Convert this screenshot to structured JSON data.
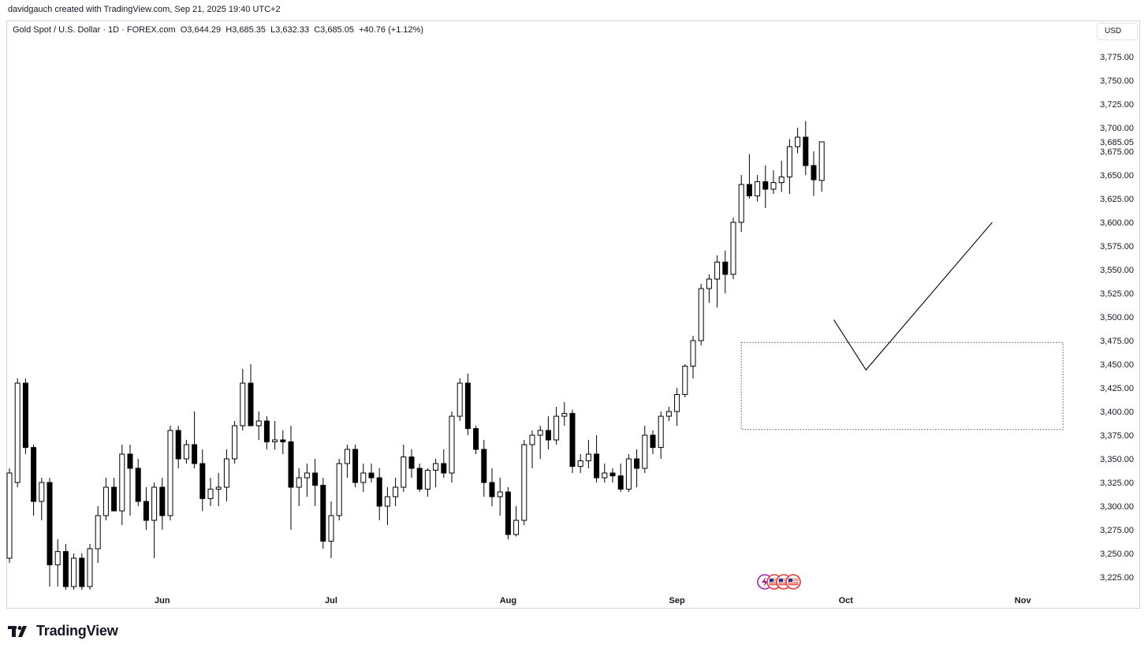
{
  "header": {
    "credit": "davidgauch created with TradingView.com, Sep 21, 2025 19:40 UTC+2"
  },
  "legend": {
    "symbol": "Gold Spot / U.S. Dollar · 1D · FOREX.com",
    "open": "O3,644.29",
    "high": "H3,685.35",
    "low": "L3,632.33",
    "close": "C3,685.05",
    "change": "+40.76 (+1.12%)"
  },
  "currency_button": "USD",
  "footer": {
    "brand": "TradingView",
    "logo_icon": "tradingview-logo-icon"
  },
  "event_icons": [
    "lightning-icon",
    "us-flag-icon",
    "us-flag-icon",
    "us-flag-icon"
  ],
  "colors": {
    "bull_fill": "#ffffff",
    "bear_fill": "#000000",
    "outline": "#000000",
    "axis_text": "#131722",
    "border": "#d1d4dc"
  },
  "chart_data": {
    "type": "candlestick",
    "symbol": "Gold Spot / U.S. Dollar",
    "timeframe": "1D",
    "currency": "USD",
    "y_range": [
      3210,
      3790
    ],
    "y_ticks": [
      "3,225.00",
      "3,250.00",
      "3,275.00",
      "3,300.00",
      "3,325.00",
      "3,350.00",
      "3,375.00",
      "3,400.00",
      "3,425.00",
      "3,450.00",
      "3,475.00",
      "3,500.00",
      "3,525.00",
      "3,550.00",
      "3,575.00",
      "3,600.00",
      "3,625.00",
      "3,650.00",
      "3,675.00",
      "3,700.00",
      "3,725.00",
      "3,750.00",
      "3,775.00"
    ],
    "last_price_label": "3,685.05",
    "x_labels": [
      {
        "label": "Jun",
        "bar": 19
      },
      {
        "label": "Jul",
        "bar": 40
      },
      {
        "label": "Aug",
        "bar": 62
      },
      {
        "label": "Sep",
        "bar": 83
      },
      {
        "label": "Oct",
        "bar": 104
      },
      {
        "label": "Nov",
        "bar": 126
      }
    ],
    "candles": [
      {
        "o": 3245,
        "h": 3340,
        "l": 3240,
        "c": 3335
      },
      {
        "o": 3325,
        "h": 3435,
        "l": 3320,
        "c": 3430
      },
      {
        "o": 3430,
        "h": 3435,
        "l": 3355,
        "c": 3362
      },
      {
        "o": 3362,
        "h": 3365,
        "l": 3290,
        "c": 3305
      },
      {
        "o": 3305,
        "h": 3330,
        "l": 3285,
        "c": 3325
      },
      {
        "o": 3325,
        "h": 3330,
        "l": 3215,
        "c": 3238
      },
      {
        "o": 3238,
        "h": 3265,
        "l": 3215,
        "c": 3252
      },
      {
        "o": 3252,
        "h": 3260,
        "l": 3210,
        "c": 3215
      },
      {
        "o": 3215,
        "h": 3250,
        "l": 3210,
        "c": 3245
      },
      {
        "o": 3245,
        "h": 3250,
        "l": 3210,
        "c": 3215
      },
      {
        "o": 3215,
        "h": 3260,
        "l": 3210,
        "c": 3255
      },
      {
        "o": 3255,
        "h": 3300,
        "l": 3240,
        "c": 3290
      },
      {
        "o": 3290,
        "h": 3330,
        "l": 3285,
        "c": 3320
      },
      {
        "o": 3320,
        "h": 3330,
        "l": 3295,
        "c": 3295
      },
      {
        "o": 3295,
        "h": 3365,
        "l": 3280,
        "c": 3355
      },
      {
        "o": 3355,
        "h": 3365,
        "l": 3290,
        "c": 3340
      },
      {
        "o": 3340,
        "h": 3350,
        "l": 3300,
        "c": 3305
      },
      {
        "o": 3305,
        "h": 3320,
        "l": 3275,
        "c": 3285
      },
      {
        "o": 3285,
        "h": 3325,
        "l": 3245,
        "c": 3320
      },
      {
        "o": 3320,
        "h": 3330,
        "l": 3275,
        "c": 3290
      },
      {
        "o": 3290,
        "h": 3385,
        "l": 3285,
        "c": 3380
      },
      {
        "o": 3380,
        "h": 3385,
        "l": 3340,
        "c": 3350
      },
      {
        "o": 3350,
        "h": 3370,
        "l": 3345,
        "c": 3365
      },
      {
        "o": 3365,
        "h": 3400,
        "l": 3340,
        "c": 3345
      },
      {
        "o": 3345,
        "h": 3360,
        "l": 3295,
        "c": 3308
      },
      {
        "o": 3308,
        "h": 3330,
        "l": 3300,
        "c": 3318
      },
      {
        "o": 3318,
        "h": 3335,
        "l": 3300,
        "c": 3320
      },
      {
        "o": 3320,
        "h": 3360,
        "l": 3305,
        "c": 3350
      },
      {
        "o": 3350,
        "h": 3390,
        "l": 3345,
        "c": 3385
      },
      {
        "o": 3385,
        "h": 3445,
        "l": 3380,
        "c": 3430
      },
      {
        "o": 3430,
        "h": 3450,
        "l": 3385,
        "c": 3385
      },
      {
        "o": 3385,
        "h": 3400,
        "l": 3370,
        "c": 3390
      },
      {
        "o": 3390,
        "h": 3395,
        "l": 3360,
        "c": 3368
      },
      {
        "o": 3368,
        "h": 3390,
        "l": 3360,
        "c": 3370
      },
      {
        "o": 3370,
        "h": 3380,
        "l": 3355,
        "c": 3368
      },
      {
        "o": 3368,
        "h": 3385,
        "l": 3275,
        "c": 3320
      },
      {
        "o": 3320,
        "h": 3340,
        "l": 3300,
        "c": 3330
      },
      {
        "o": 3330,
        "h": 3345,
        "l": 3310,
        "c": 3335
      },
      {
        "o": 3335,
        "h": 3350,
        "l": 3300,
        "c": 3322
      },
      {
        "o": 3322,
        "h": 3330,
        "l": 3255,
        "c": 3263
      },
      {
        "o": 3263,
        "h": 3305,
        "l": 3245,
        "c": 3290
      },
      {
        "o": 3290,
        "h": 3350,
        "l": 3285,
        "c": 3345
      },
      {
        "o": 3345,
        "h": 3365,
        "l": 3330,
        "c": 3360
      },
      {
        "o": 3360,
        "h": 3365,
        "l": 3320,
        "c": 3325
      },
      {
        "o": 3325,
        "h": 3345,
        "l": 3315,
        "c": 3335
      },
      {
        "o": 3335,
        "h": 3345,
        "l": 3325,
        "c": 3330
      },
      {
        "o": 3330,
        "h": 3340,
        "l": 3285,
        "c": 3300
      },
      {
        "o": 3300,
        "h": 3320,
        "l": 3280,
        "c": 3310
      },
      {
        "o": 3310,
        "h": 3330,
        "l": 3300,
        "c": 3320
      },
      {
        "o": 3320,
        "h": 3365,
        "l": 3315,
        "c": 3352
      },
      {
        "o": 3352,
        "h": 3360,
        "l": 3330,
        "c": 3340
      },
      {
        "o": 3340,
        "h": 3345,
        "l": 3315,
        "c": 3318
      },
      {
        "o": 3318,
        "h": 3340,
        "l": 3310,
        "c": 3338
      },
      {
        "o": 3338,
        "h": 3350,
        "l": 3320,
        "c": 3345
      },
      {
        "o": 3345,
        "h": 3360,
        "l": 3330,
        "c": 3335
      },
      {
        "o": 3335,
        "h": 3400,
        "l": 3325,
        "c": 3395
      },
      {
        "o": 3395,
        "h": 3435,
        "l": 3390,
        "c": 3430
      },
      {
        "o": 3430,
        "h": 3440,
        "l": 3375,
        "c": 3382
      },
      {
        "o": 3382,
        "h": 3385,
        "l": 3355,
        "c": 3360
      },
      {
        "o": 3360,
        "h": 3370,
        "l": 3310,
        "c": 3325
      },
      {
        "o": 3325,
        "h": 3340,
        "l": 3300,
        "c": 3310
      },
      {
        "o": 3310,
        "h": 3330,
        "l": 3290,
        "c": 3315
      },
      {
        "o": 3315,
        "h": 3320,
        "l": 3265,
        "c": 3270
      },
      {
        "o": 3270,
        "h": 3300,
        "l": 3268,
        "c": 3285
      },
      {
        "o": 3285,
        "h": 3370,
        "l": 3280,
        "c": 3365
      },
      {
        "o": 3365,
        "h": 3380,
        "l": 3340,
        "c": 3375
      },
      {
        "o": 3375,
        "h": 3385,
        "l": 3350,
        "c": 3380
      },
      {
        "o": 3380,
        "h": 3395,
        "l": 3360,
        "c": 3370
      },
      {
        "o": 3370,
        "h": 3405,
        "l": 3365,
        "c": 3395
      },
      {
        "o": 3395,
        "h": 3410,
        "l": 3385,
        "c": 3398
      },
      {
        "o": 3398,
        "h": 3402,
        "l": 3335,
        "c": 3342
      },
      {
        "o": 3342,
        "h": 3355,
        "l": 3335,
        "c": 3348
      },
      {
        "o": 3348,
        "h": 3370,
        "l": 3340,
        "c": 3355
      },
      {
        "o": 3355,
        "h": 3375,
        "l": 3325,
        "c": 3330
      },
      {
        "o": 3330,
        "h": 3345,
        "l": 3325,
        "c": 3335
      },
      {
        "o": 3335,
        "h": 3340,
        "l": 3325,
        "c": 3332
      },
      {
        "o": 3332,
        "h": 3345,
        "l": 3315,
        "c": 3318
      },
      {
        "o": 3318,
        "h": 3355,
        "l": 3315,
        "c": 3350
      },
      {
        "o": 3350,
        "h": 3360,
        "l": 3320,
        "c": 3340
      },
      {
        "o": 3340,
        "h": 3385,
        "l": 3335,
        "c": 3375
      },
      {
        "o": 3375,
        "h": 3380,
        "l": 3355,
        "c": 3362
      },
      {
        "o": 3362,
        "h": 3400,
        "l": 3350,
        "c": 3395
      },
      {
        "o": 3395,
        "h": 3405,
        "l": 3390,
        "c": 3400
      },
      {
        "o": 3400,
        "h": 3425,
        "l": 3385,
        "c": 3418
      },
      {
        "o": 3418,
        "h": 3450,
        "l": 3415,
        "c": 3448
      },
      {
        "o": 3448,
        "h": 3480,
        "l": 3435,
        "c": 3475
      },
      {
        "o": 3475,
        "h": 3535,
        "l": 3470,
        "c": 3530
      },
      {
        "o": 3530,
        "h": 3545,
        "l": 3515,
        "c": 3540
      },
      {
        "o": 3540,
        "h": 3565,
        "l": 3510,
        "c": 3558
      },
      {
        "o": 3558,
        "h": 3570,
        "l": 3525,
        "c": 3545
      },
      {
        "o": 3545,
        "h": 3605,
        "l": 3540,
        "c": 3600
      },
      {
        "o": 3600,
        "h": 3650,
        "l": 3590,
        "c": 3640
      },
      {
        "o": 3640,
        "h": 3672,
        "l": 3625,
        "c": 3628
      },
      {
        "o": 3628,
        "h": 3650,
        "l": 3622,
        "c": 3643
      },
      {
        "o": 3643,
        "h": 3660,
        "l": 3615,
        "c": 3635
      },
      {
        "o": 3635,
        "h": 3655,
        "l": 3630,
        "c": 3642
      },
      {
        "o": 3642,
        "h": 3665,
        "l": 3632,
        "c": 3648
      },
      {
        "o": 3648,
        "h": 3688,
        "l": 3630,
        "c": 3680
      },
      {
        "o": 3680,
        "h": 3700,
        "l": 3673,
        "c": 3690
      },
      {
        "o": 3690,
        "h": 3707,
        "l": 3650,
        "c": 3660
      },
      {
        "o": 3660,
        "h": 3675,
        "l": 3628,
        "c": 3645
      },
      {
        "o": 3644.29,
        "h": 3685.35,
        "l": 3632.33,
        "c": 3685.05
      }
    ],
    "drawings": {
      "rectangle": {
        "bar_start": 91,
        "bar_end": 131,
        "price_top": 3473,
        "price_bottom": 3381,
        "style": "dotted"
      },
      "projection_path": [
        {
          "bar": 102.5,
          "price": 3497
        },
        {
          "bar": 106.5,
          "price": 3444
        },
        {
          "bar": 122.2,
          "price": 3600
        }
      ]
    }
  }
}
